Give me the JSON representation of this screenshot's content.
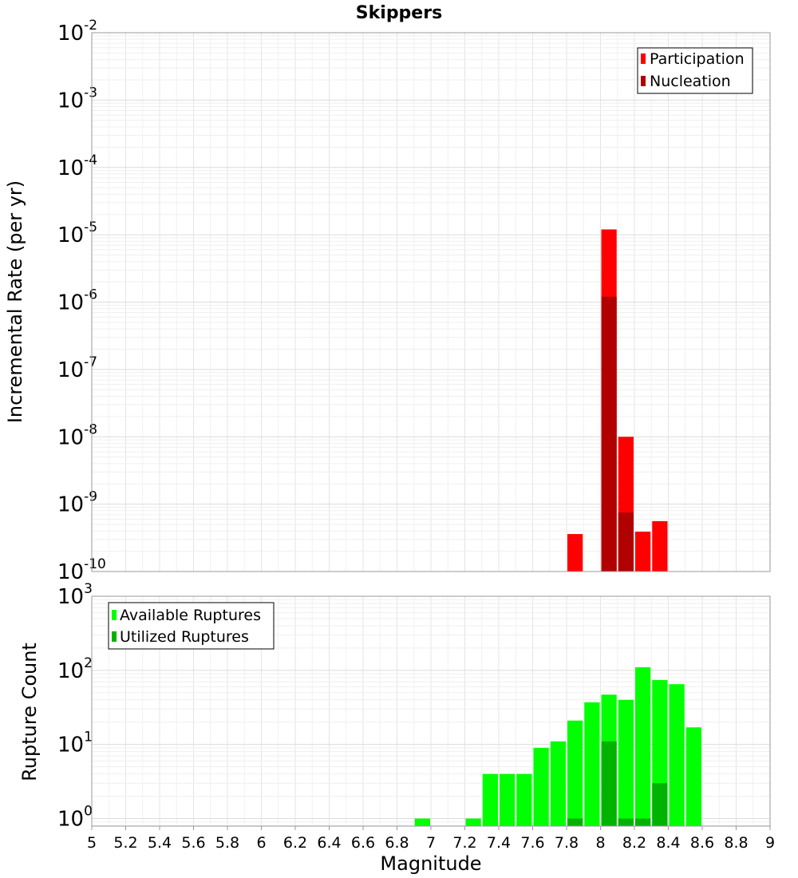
{
  "chart_data": [
    {
      "type": "bar",
      "title": "Skippers",
      "xlabel": "",
      "ylabel": "Incremental Rate (per yr)",
      "yscale": "log",
      "ylim": [
        1e-10,
        0.01
      ],
      "xlim": [
        5,
        9
      ],
      "grid": true,
      "legend_position": "top-right",
      "bar_width": 0.1,
      "yticks": [
        {
          "base": "10",
          "exp": "-10",
          "value": 1e-10
        },
        {
          "base": "10",
          "exp": "-9",
          "value": 1e-09
        },
        {
          "base": "10",
          "exp": "-8",
          "value": 1e-08
        },
        {
          "base": "10",
          "exp": "-7",
          "value": 1e-07
        },
        {
          "base": "10",
          "exp": "-6",
          "value": 1e-06
        },
        {
          "base": "10",
          "exp": "-5",
          "value": 1e-05
        },
        {
          "base": "10",
          "exp": "-4",
          "value": 0.0001
        },
        {
          "base": "10",
          "exp": "-3",
          "value": 0.001
        },
        {
          "base": "10",
          "exp": "-2",
          "value": 0.01
        }
      ],
      "series": [
        {
          "name": "Participation",
          "color": "#ff0000",
          "x": [
            7.85,
            8.05,
            8.15,
            8.25,
            8.35
          ],
          "values": [
            3.6e-10,
            1.2e-05,
            1e-08,
            3.9e-10,
            5.6e-10
          ]
        },
        {
          "name": "Nucleation",
          "color": "#b00000",
          "x": [
            8.05,
            8.15
          ],
          "values": [
            1.2e-06,
            7.5e-10
          ]
        }
      ]
    },
    {
      "type": "bar",
      "title": "",
      "xlabel": "Magnitude",
      "ylabel": "Rupture Count",
      "yscale": "log",
      "ylim": [
        0.79,
        1000
      ],
      "xlim": [
        5,
        9
      ],
      "grid": true,
      "legend_position": "top-left",
      "bar_width": 0.1,
      "xticks": [
        "5",
        "5.2",
        "5.4",
        "5.6",
        "5.8",
        "6",
        "6.2",
        "6.4",
        "6.6",
        "6.8",
        "7",
        "7.2",
        "7.4",
        "7.6",
        "7.8",
        "8",
        "8.2",
        "8.4",
        "8.6",
        "8.8",
        "9"
      ],
      "yticks": [
        {
          "base": "10",
          "exp": "0",
          "value": 1
        },
        {
          "base": "10",
          "exp": "1",
          "value": 10
        },
        {
          "base": "10",
          "exp": "2",
          "value": 100
        },
        {
          "base": "10",
          "exp": "3",
          "value": 1000
        }
      ],
      "series": [
        {
          "name": "Available Ruptures",
          "color": "#00ff00",
          "x": [
            6.95,
            7.25,
            7.35,
            7.45,
            7.55,
            7.65,
            7.75,
            7.85,
            7.95,
            8.05,
            8.15,
            8.25,
            8.35,
            8.45,
            8.55
          ],
          "values": [
            1,
            1,
            4,
            4,
            4,
            9,
            11,
            21,
            37,
            47,
            40,
            110,
            74,
            65,
            17
          ]
        },
        {
          "name": "Utilized Ruptures",
          "color": "#00b300",
          "x": [
            7.85,
            8.05,
            8.15,
            8.25,
            8.35
          ],
          "values": [
            1,
            11,
            1,
            1,
            3
          ]
        }
      ]
    }
  ]
}
